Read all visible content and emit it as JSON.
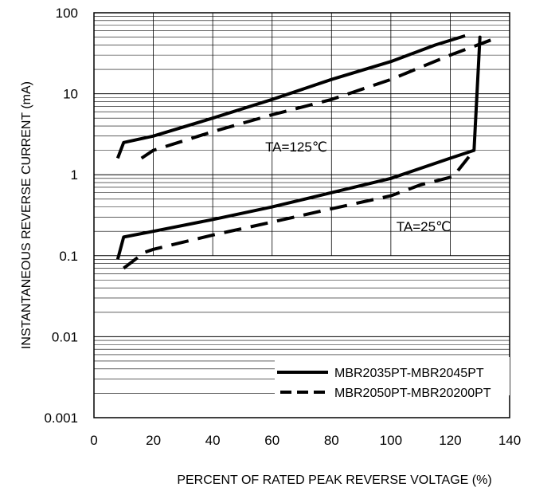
{
  "chart_data": {
    "type": "line",
    "title": "",
    "xlabel": "PERCENT OF RATED PEAK REVERSE VOLTAGE (%)",
    "ylabel": "INSTANTANEOUS REVERSE CURRENT (mA)",
    "x_scale": "linear",
    "y_scale": "log",
    "xlim": [
      0,
      140
    ],
    "ylim": [
      0.001,
      100
    ],
    "grid": "horizontal minor log gridlines, vertical lines every 20 from 20 to 120 in the upper region",
    "x_ticks": [
      "0",
      "20",
      "40",
      "60",
      "80",
      "100",
      "120",
      "140"
    ],
    "y_ticks": [
      "0.001",
      "0.01",
      "0.1",
      "1",
      "10",
      "100"
    ],
    "legend_position": "bottom-right",
    "series": [
      {
        "name": "MBR2035PT-MBR2045PT",
        "style": "solid",
        "color": "#000000",
        "points": [
          [
            8,
            0.09
          ],
          [
            10,
            0.17
          ],
          [
            20,
            0.2
          ],
          [
            40,
            0.28
          ],
          [
            60,
            0.4
          ],
          [
            80,
            0.6
          ],
          [
            100,
            0.9
          ],
          [
            120,
            1.6
          ],
          [
            128,
            2.0
          ],
          [
            130,
            50
          ],
          [
            128,
            2.0
          ],
          [
            120,
            1.6
          ]
        ]
      },
      {
        "name": "MBR2035PT-MBR2045PT",
        "style": "solid",
        "color": "#000000",
        "points": [
          [
            8,
            1.6
          ],
          [
            10,
            2.5
          ],
          [
            20,
            3.0
          ],
          [
            40,
            5.0
          ],
          [
            60,
            8.5
          ],
          [
            80,
            15
          ],
          [
            100,
            25
          ],
          [
            115,
            40
          ],
          [
            125,
            52
          ]
        ]
      },
      {
        "name": "MBR2050PT-MBR20200PT",
        "style": "dashed",
        "color": "#000000",
        "points": [
          [
            10,
            0.07
          ],
          [
            17,
            0.11
          ],
          [
            20,
            0.12
          ],
          [
            40,
            0.18
          ],
          [
            60,
            0.26
          ],
          [
            80,
            0.38
          ],
          [
            100,
            0.55
          ],
          [
            110,
            0.75
          ],
          [
            121,
            0.95
          ],
          [
            128,
            2.0
          ]
        ]
      },
      {
        "name": "MBR2050PT-MBR20200PT",
        "style": "dashed",
        "color": "#000000",
        "points": [
          [
            16,
            1.6
          ],
          [
            20,
            2.0
          ],
          [
            40,
            3.4
          ],
          [
            60,
            5.5
          ],
          [
            80,
            8.5
          ],
          [
            100,
            15
          ],
          [
            120,
            30
          ],
          [
            135,
            48
          ]
        ]
      }
    ],
    "annotations": [
      {
        "text": "TA=125℃",
        "x": 80,
        "y": 1.9
      },
      {
        "text": "TA=25℃",
        "x": 115,
        "y": 0.18
      }
    ],
    "legend": [
      {
        "label": "MBR2035PT-MBR2045PT",
        "style": "solid"
      },
      {
        "label": "MBR2050PT-MBR20200PT",
        "style": "dashed"
      }
    ]
  }
}
